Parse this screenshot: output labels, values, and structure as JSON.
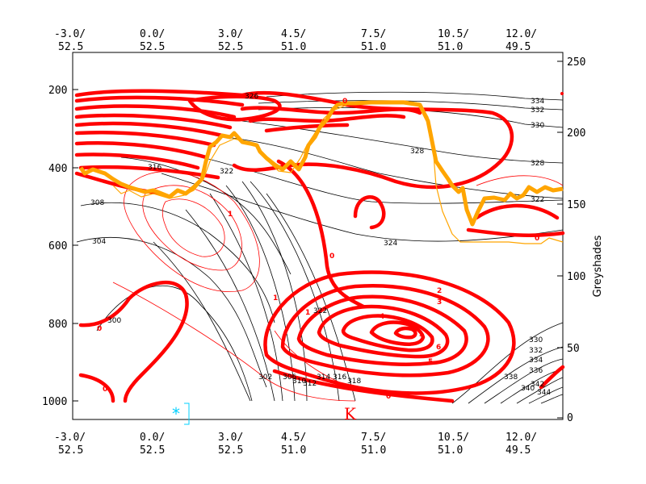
{
  "chart_data": {
    "type": "contour-cross-section",
    "left_axis": {
      "ticks": [
        200,
        400,
        600,
        800,
        1000
      ],
      "range": [
        150,
        1050
      ],
      "inverted": true
    },
    "right_axis": {
      "title": "Greyshades",
      "ticks": [
        0,
        50,
        100,
        150,
        200,
        250
      ],
      "range": [
        0,
        250
      ]
    },
    "top_axis_labels": [
      {
        "lon": "-3.0/",
        "lat": "52.5"
      },
      {
        "lon": "0.0/",
        "lat": "52.5"
      },
      {
        "lon": "3.0/",
        "lat": "52.5"
      },
      {
        "lon": "4.5/",
        "lat": "51.0"
      },
      {
        "lon": "7.5/",
        "lat": "51.0"
      },
      {
        "lon": "10.5/",
        "lat": "51.0"
      },
      {
        "lon": "12.0/",
        "lat": "49.5"
      }
    ],
    "bottom_axis_labels": [
      {
        "lon": "-3.0/",
        "lat": "52.5"
      },
      {
        "lon": "0.0/",
        "lat": "52.5"
      },
      {
        "lon": "3.0/",
        "lat": "52.5"
      },
      {
        "lon": "4.5/",
        "lat": "51.0"
      },
      {
        "lon": "7.5/",
        "lat": "51.0"
      },
      {
        "lon": "10.5/",
        "lat": "51.0"
      },
      {
        "lon": "12.0/",
        "lat": "49.5"
      }
    ],
    "theta_contour_labels": [
      "334",
      "332",
      "330",
      "328",
      "326",
      "322",
      "324",
      "316",
      "308",
      "304",
      "300",
      "302",
      "306",
      "310",
      "312",
      "314",
      "316",
      "318",
      "320",
      "322",
      "330",
      "332",
      "334",
      "336",
      "338",
      "340",
      "342",
      "344"
    ],
    "red_labels": [
      "0",
      "0",
      "0",
      "0",
      "0",
      "0",
      "1",
      "1",
      "1",
      "2",
      "3",
      "4",
      "5",
      "6",
      "7"
    ],
    "markers": {
      "asterisk": "*",
      "k_symbol": "K"
    },
    "colors": {
      "isentropes": "#000000",
      "vorticity": "#ff0000",
      "dynamic_tropopause": "#ffa500"
    }
  }
}
